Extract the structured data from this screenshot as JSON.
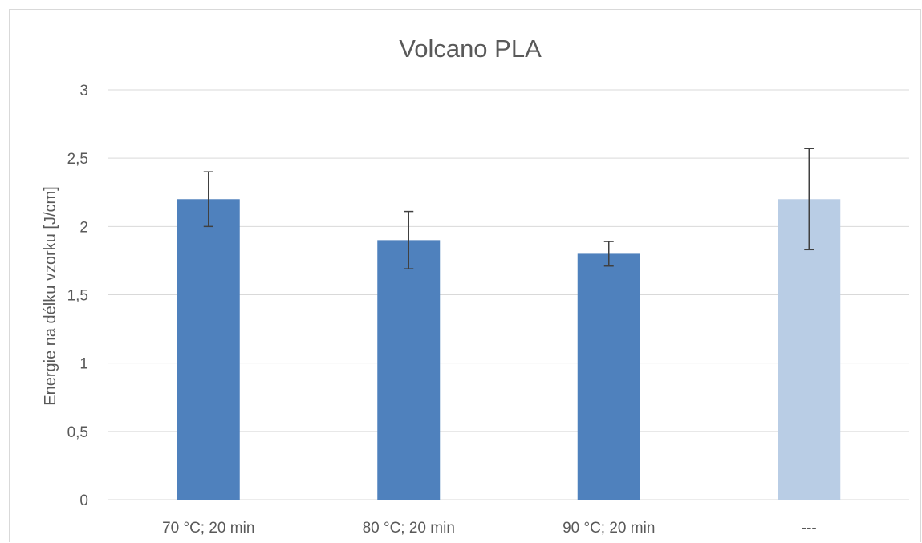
{
  "chart_data": {
    "type": "bar",
    "title": "Volcano PLA",
    "xlabel": "",
    "ylabel": "Energie na délku vzorku [J/cm]",
    "categories": [
      "70 °C; 20 min",
      "80 °C; 20 min",
      "90 °C; 20 min",
      "---"
    ],
    "values": [
      2.2,
      1.9,
      1.8,
      2.2
    ],
    "error_low": [
      2.0,
      1.69,
      1.71,
      1.83
    ],
    "error_high": [
      2.4,
      2.11,
      1.89,
      2.57
    ],
    "ylim": [
      0,
      3
    ],
    "yticks": [
      "0",
      "0,5",
      "1",
      "1,5",
      "2",
      "2,5",
      "3"
    ],
    "ytick_values": [
      0,
      0.5,
      1,
      1.5,
      2,
      2.5,
      3
    ],
    "grid": true,
    "legend": "none",
    "colors": [
      "#4f81bd",
      "#4f81bd",
      "#4f81bd",
      "#b9cde5"
    ],
    "error_color": "#404040",
    "grid_color": "#d9d9d9"
  }
}
